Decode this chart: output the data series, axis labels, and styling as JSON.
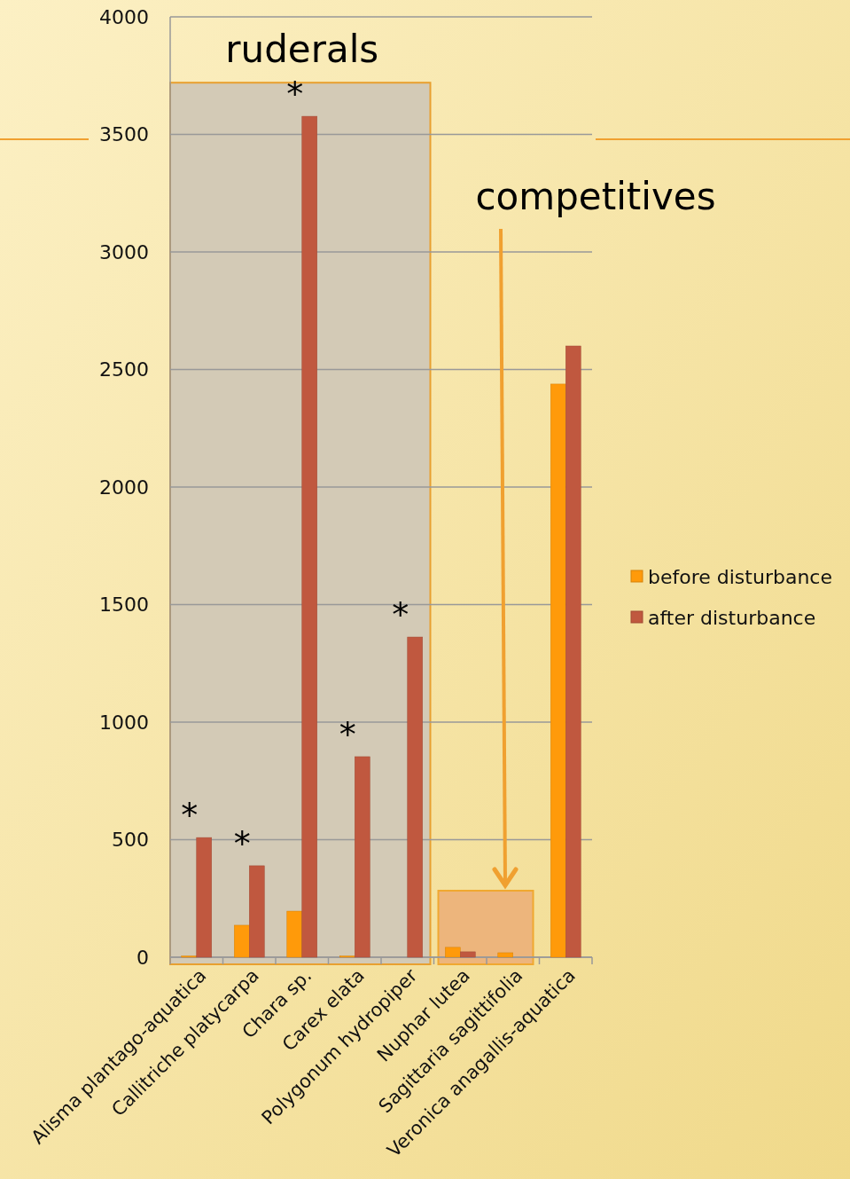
{
  "chart_data": {
    "type": "bar",
    "categories": [
      "Alisma plantago-aquatica",
      "Callitriche platycarpa",
      "Chara sp.",
      "Carex elata",
      "Polygonum hydropiper",
      "Nuphar lutea",
      "Sagittaria sagittifolia",
      "Veronica anagallis-aquatica"
    ],
    "series": [
      {
        "name": "before disturbance",
        "color": "#ff9a0a",
        "values": [
          5,
          136,
          196,
          5,
          0,
          42,
          19,
          2438
        ]
      },
      {
        "name": "after disturbance",
        "color": "#c0583f",
        "values": [
          509,
          389,
          3577,
          853,
          1362,
          23,
          0,
          2600
        ]
      }
    ],
    "ylim": [
      0,
      4000
    ],
    "yticks": [
      0,
      500,
      1000,
      1500,
      2000,
      2500,
      3000,
      3500,
      4000
    ],
    "grid": "y",
    "legend": "right",
    "annotations": [
      "ruderals",
      "competitives",
      {
        "text": "*",
        "x": "Alisma plantago-aquatica",
        "y": 509
      },
      {
        "text": "*",
        "x": "Callitriche platycarpa",
        "y": 389
      },
      {
        "text": "*",
        "x": "Chara sp.",
        "y": 3577
      },
      {
        "text": "*",
        "x": "Carex elata",
        "y": 853
      },
      {
        "text": "*",
        "x": "Polygonum hydropiper",
        "y": 1362
      }
    ]
  }
}
